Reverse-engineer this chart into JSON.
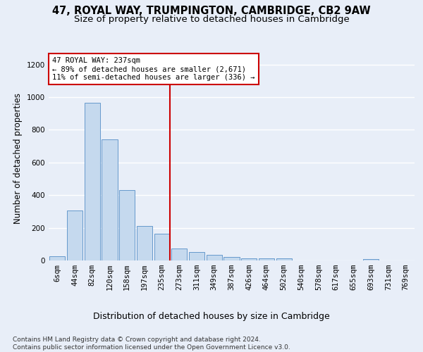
{
  "title_line1": "47, ROYAL WAY, TRUMPINGTON, CAMBRIDGE, CB2 9AW",
  "title_line2": "Size of property relative to detached houses in Cambridge",
  "xlabel": "Distribution of detached houses by size in Cambridge",
  "ylabel": "Number of detached properties",
  "footnote": "Contains HM Land Registry data © Crown copyright and database right 2024.\nContains public sector information licensed under the Open Government Licence v3.0.",
  "bin_labels": [
    "6sqm",
    "44sqm",
    "82sqm",
    "120sqm",
    "158sqm",
    "197sqm",
    "235sqm",
    "273sqm",
    "311sqm",
    "349sqm",
    "387sqm",
    "426sqm",
    "464sqm",
    "502sqm",
    "540sqm",
    "578sqm",
    "617sqm",
    "655sqm",
    "693sqm",
    "731sqm",
    "769sqm"
  ],
  "bar_values": [
    25,
    305,
    965,
    740,
    430,
    210,
    165,
    75,
    50,
    35,
    20,
    15,
    12,
    12,
    0,
    0,
    0,
    0,
    10,
    0,
    0
  ],
  "bar_color": "#c5d9ee",
  "bar_edge_color": "#6699cc",
  "vline_color": "#cc0000",
  "vline_x_index": 6,
  "annotation_text": "47 ROYAL WAY: 237sqm\n← 89% of detached houses are smaller (2,671)\n11% of semi-detached houses are larger (336) →",
  "annotation_box_color": "#ffffff",
  "annotation_box_edge": "#cc0000",
  "ylim": [
    0,
    1250
  ],
  "yticks": [
    0,
    200,
    400,
    600,
    800,
    1000,
    1200
  ],
  "background_color": "#e8eef8",
  "grid_color": "#ffffff",
  "title_fontsize": 10.5,
  "subtitle_fontsize": 9.5,
  "xlabel_fontsize": 9,
  "ylabel_fontsize": 8.5,
  "tick_fontsize": 7.5,
  "annotation_fontsize": 7.5,
  "footnote_fontsize": 6.5
}
